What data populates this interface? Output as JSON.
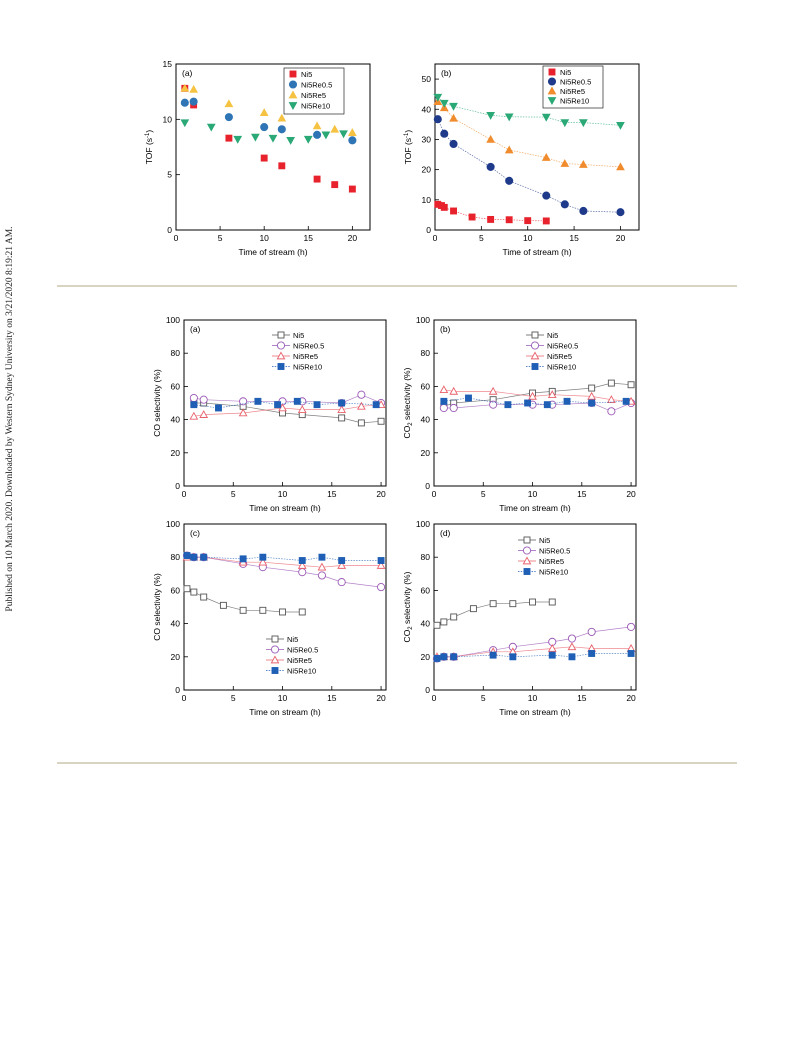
{
  "side_note": "Published on 10 March 2020. Downloaded by Western Sydney University on 3/21/2020 8:19:21 AM.",
  "chart_data": [
    {
      "type": "scatter",
      "panel": "(a)",
      "xlabel": "Time of stream (h)",
      "ylabel": "TOF (s",
      "ylabel_sup": "-1",
      "ylabel_end": ")",
      "xlim": [
        0,
        22
      ],
      "ylim": [
        0,
        15
      ],
      "xticks": [
        0,
        5,
        10,
        15,
        20
      ],
      "yticks": [
        0,
        5,
        10,
        15
      ],
      "legend_pos": "top-right",
      "series": [
        {
          "name": "Ni5",
          "marker": "square",
          "color": "#e8222c",
          "filled": true,
          "line": false,
          "x": [
            1,
            2,
            6,
            10,
            12,
            16,
            18,
            20
          ],
          "y": [
            12.8,
            11.3,
            8.3,
            6.5,
            5.8,
            4.6,
            4.1,
            3.7
          ]
        },
        {
          "name": "Ni5Re0.5",
          "marker": "circle",
          "color": "#2f75b5",
          "filled": true,
          "line": false,
          "x": [
            1,
            2,
            6,
            10,
            12,
            16,
            20
          ],
          "y": [
            11.5,
            11.6,
            10.2,
            9.3,
            9.1,
            8.6,
            8.1
          ]
        },
        {
          "name": "Ni5Re5",
          "marker": "triangle",
          "color": "#f5c242",
          "filled": true,
          "line": false,
          "x": [
            1,
            2,
            6,
            10,
            12,
            16,
            18,
            20
          ],
          "y": [
            12.8,
            12.7,
            11.4,
            10.6,
            10.1,
            9.4,
            9.1,
            8.8
          ]
        },
        {
          "name": "Ni5Re10",
          "marker": "triangle-down",
          "color": "#2aa876",
          "filled": true,
          "line": false,
          "x": [
            1,
            4,
            7,
            9,
            11,
            13,
            15,
            17,
            19
          ],
          "y": [
            9.7,
            9.3,
            8.2,
            8.4,
            8.3,
            8.1,
            8.2,
            8.6,
            8.7
          ]
        }
      ]
    },
    {
      "type": "scatter",
      "panel": "(b)",
      "xlabel": "Time of stream (h)",
      "ylabel": "TOF (s",
      "ylabel_sup": "-1",
      "ylabel_end": ")",
      "xlim": [
        0,
        22
      ],
      "ylim": [
        0,
        55
      ],
      "xticks": [
        0,
        5,
        10,
        15,
        20
      ],
      "yticks": [
        0,
        10,
        20,
        30,
        40,
        50
      ],
      "legend_pos": "top-right",
      "series": [
        {
          "name": "Ni5",
          "marker": "square",
          "color": "#e8222c",
          "filled": true,
          "line": true,
          "x": [
            0.3,
            0.7,
            1,
            2,
            4,
            6,
            8,
            10,
            12
          ],
          "y": [
            8.5,
            8.1,
            7.5,
            6.3,
            4.3,
            3.5,
            3.4,
            3.1,
            3.0
          ]
        },
        {
          "name": "Ni5Re0.5",
          "marker": "circle",
          "color": "#1f3a8a",
          "filled": true,
          "line": true,
          "x": [
            0.3,
            1,
            2,
            6,
            8,
            12,
            14,
            16,
            20
          ],
          "y": [
            36.7,
            31.9,
            28.5,
            20.9,
            16.3,
            11.4,
            8.5,
            6.3,
            5.9
          ]
        },
        {
          "name": "Ni5Re5",
          "marker": "triangle",
          "color": "#f08c2e",
          "filled": true,
          "line": true,
          "x": [
            0.3,
            1,
            2,
            6,
            8,
            12,
            14,
            16,
            20
          ],
          "y": [
            42.5,
            40.5,
            37.0,
            30.0,
            26.5,
            24.0,
            22.0,
            21.7,
            20.9
          ]
        },
        {
          "name": "Ni5Re10",
          "marker": "triangle-down",
          "color": "#2aa876",
          "filled": true,
          "line": true,
          "x": [
            0.3,
            1,
            2,
            6,
            8,
            12,
            14,
            16,
            20
          ],
          "y": [
            44.0,
            42.0,
            41.0,
            38.0,
            37.5,
            37.4,
            35.6,
            35.6,
            34.7
          ]
        }
      ]
    },
    {
      "type": "scatter",
      "panel": "(a)",
      "xlabel": "Time on stream (h)",
      "ylabel": "CO selectivity (%)",
      "xlim": [
        0,
        20.5
      ],
      "ylim": [
        0,
        100
      ],
      "xticks": [
        0,
        5,
        10,
        15,
        20
      ],
      "yticks": [
        0,
        20,
        40,
        60,
        80,
        100
      ],
      "legend_pos": "top-right",
      "series": [
        {
          "name": "Ni5",
          "marker": "square",
          "color": "#555555",
          "filled": false,
          "line": true,
          "x": [
            1,
            2,
            6,
            10,
            12,
            16,
            18,
            20
          ],
          "y": [
            50,
            50,
            48,
            44,
            43,
            41,
            38,
            39
          ]
        },
        {
          "name": "Ni5Re0.5",
          "marker": "circle",
          "color": "#9b59b6",
          "filled": false,
          "line": true,
          "x": [
            1,
            2,
            6,
            10,
            12,
            16,
            18,
            20
          ],
          "y": [
            53,
            52,
            51,
            51,
            51,
            50,
            55,
            50
          ]
        },
        {
          "name": "Ni5Re5",
          "marker": "triangle",
          "color": "#e8606a",
          "filled": false,
          "line": true,
          "x": [
            1,
            2,
            6,
            10,
            12,
            16,
            18,
            20
          ],
          "y": [
            42,
            43,
            44,
            47,
            46,
            46,
            48,
            49
          ]
        },
        {
          "name": "Ni5Re10",
          "marker": "square",
          "color": "#1f5fb5",
          "filled": true,
          "line": true,
          "x": [
            1,
            3.5,
            7.5,
            9.5,
            11.5,
            13.5,
            16,
            19.5
          ],
          "y": [
            49,
            47,
            51,
            49,
            51,
            49,
            50,
            49
          ]
        }
      ]
    },
    {
      "type": "scatter",
      "panel": "(b)",
      "xlabel": "Time on stream (h)",
      "ylabel": "CO",
      "ylabel_sub": "2",
      "ylabel_end": " selectivity (%)",
      "xlim": [
        0,
        20.5
      ],
      "ylim": [
        0,
        100
      ],
      "xticks": [
        0,
        5,
        10,
        15,
        20
      ],
      "yticks": [
        0,
        20,
        40,
        60,
        80,
        100
      ],
      "legend_pos": "top-right",
      "series": [
        {
          "name": "Ni5",
          "marker": "square",
          "color": "#555555",
          "filled": false,
          "line": true,
          "x": [
            1,
            2,
            6,
            10,
            12,
            16,
            18,
            20
          ],
          "y": [
            48,
            50,
            52,
            56,
            57,
            59,
            62,
            61
          ]
        },
        {
          "name": "Ni5Re0.5",
          "marker": "circle",
          "color": "#9b59b6",
          "filled": false,
          "line": true,
          "x": [
            1,
            2,
            6,
            10,
            12,
            16,
            18,
            20
          ],
          "y": [
            47,
            47,
            49,
            49,
            49,
            50,
            45,
            50
          ]
        },
        {
          "name": "Ni5Re5",
          "marker": "triangle",
          "color": "#e8606a",
          "filled": false,
          "line": true,
          "x": [
            1,
            2,
            6,
            10,
            12,
            16,
            18,
            20
          ],
          "y": [
            58,
            57,
            57,
            54,
            55,
            54,
            52,
            51
          ]
        },
        {
          "name": "Ni5Re10",
          "marker": "square",
          "color": "#1f5fb5",
          "filled": true,
          "line": true,
          "x": [
            1,
            3.5,
            7.5,
            9.5,
            11.5,
            13.5,
            16,
            19.5
          ],
          "y": [
            51,
            53,
            49,
            50,
            49,
            51,
            50,
            51
          ]
        }
      ]
    },
    {
      "type": "scatter",
      "panel": "(c)",
      "xlabel": "Time on stream (h)",
      "ylabel": "CO selectivity (%)",
      "xlim": [
        0,
        20.5
      ],
      "ylim": [
        0,
        100
      ],
      "xticks": [
        0,
        5,
        10,
        15,
        20
      ],
      "yticks": [
        0,
        20,
        40,
        60,
        80,
        100
      ],
      "legend_pos": "bottom-right",
      "series": [
        {
          "name": "Ni5",
          "marker": "square",
          "color": "#555555",
          "filled": false,
          "line": true,
          "x": [
            0.3,
            1,
            2,
            4,
            6,
            8,
            10,
            12
          ],
          "y": [
            61,
            59,
            56,
            51,
            48,
            48,
            47,
            47
          ]
        },
        {
          "name": "Ni5Re0.5",
          "marker": "circle",
          "color": "#9b59b6",
          "filled": false,
          "line": true,
          "x": [
            0.3,
            1,
            2,
            6,
            8,
            12,
            14,
            16,
            20
          ],
          "y": [
            81,
            80,
            80,
            76,
            74,
            71,
            69,
            65,
            62
          ]
        },
        {
          "name": "Ni5Re5",
          "marker": "triangle",
          "color": "#e8606a",
          "filled": false,
          "line": true,
          "x": [
            0.3,
            1,
            2,
            6,
            8,
            12,
            14,
            16,
            20
          ],
          "y": [
            80,
            80,
            80,
            77,
            77,
            75,
            74,
            75,
            75
          ]
        },
        {
          "name": "Ni5Re10",
          "marker": "square",
          "color": "#1f5fb5",
          "filled": true,
          "line": true,
          "x": [
            0.3,
            1,
            2,
            6,
            8,
            12,
            14,
            16,
            20
          ],
          "y": [
            81,
            80,
            80,
            79,
            80,
            78,
            80,
            78,
            78
          ]
        }
      ]
    },
    {
      "type": "scatter",
      "panel": "(d)",
      "xlabel": "Time on stream (h)",
      "ylabel": "CO",
      "ylabel_sub": "2",
      "ylabel_end": " selectivity (%)",
      "xlim": [
        0,
        20.5
      ],
      "ylim": [
        0,
        100
      ],
      "xticks": [
        0,
        5,
        10,
        15,
        20
      ],
      "yticks": [
        0,
        20,
        40,
        60,
        80,
        100
      ],
      "legend_pos": "top-right",
      "series": [
        {
          "name": "Ni5",
          "marker": "square",
          "color": "#555555",
          "filled": false,
          "line": true,
          "x": [
            0.3,
            1,
            2,
            4,
            6,
            8,
            10,
            12
          ],
          "y": [
            39,
            41,
            44,
            49,
            52,
            52,
            53,
            53
          ]
        },
        {
          "name": "Ni5Re0.5",
          "marker": "circle",
          "color": "#9b59b6",
          "filled": false,
          "line": true,
          "x": [
            0.3,
            1,
            2,
            6,
            8,
            12,
            14,
            16,
            20
          ],
          "y": [
            19,
            20,
            20,
            24,
            26,
            29,
            31,
            35,
            38
          ]
        },
        {
          "name": "Ni5Re5",
          "marker": "triangle",
          "color": "#e8606a",
          "filled": false,
          "line": true,
          "x": [
            0.3,
            1,
            2,
            6,
            8,
            12,
            14,
            16,
            20
          ],
          "y": [
            20,
            20,
            20,
            23,
            23,
            25,
            26,
            25,
            25
          ]
        },
        {
          "name": "Ni5Re10",
          "marker": "square",
          "color": "#1f5fb5",
          "filled": true,
          "line": true,
          "x": [
            0.3,
            1,
            2,
            6,
            8,
            12,
            14,
            16,
            20
          ],
          "y": [
            19,
            20,
            20,
            21,
            20,
            21,
            20,
            22,
            22
          ]
        }
      ]
    }
  ]
}
